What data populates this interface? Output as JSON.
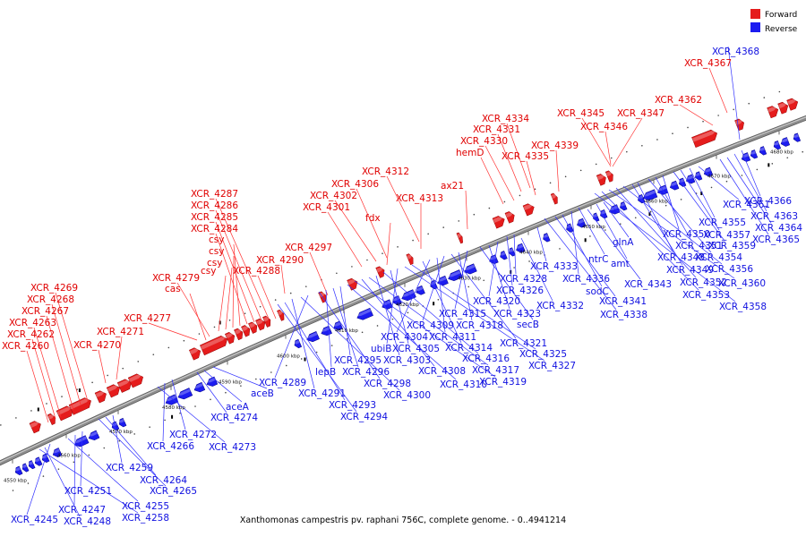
{
  "legend": {
    "forward": {
      "label": "Forward",
      "color": "#e51c1c"
    },
    "reverse": {
      "label": "Reverse",
      "color": "#1c1cf0"
    }
  },
  "caption": "Xanthomonas campestris pv. raphani 756C, complete genome. - 0..4941214",
  "colors": {
    "backbone": "#8c8c8c",
    "leader": "#ff3030",
    "leader_reverse": "#3030ff"
  },
  "scale": {
    "unit": "kbp",
    "ticks": [
      4550,
      4560,
      4570,
      4580,
      4590,
      4600,
      4610,
      4620,
      4630,
      4640,
      4650,
      4660,
      4670,
      4680
    ]
  },
  "forward_labels": [
    "XCR_4367",
    "XCR_4362",
    "XCR_4345",
    "XCR_4347",
    "XCR_4346",
    "XCR_4334",
    "XCR_4331",
    "XCR_4330",
    "hemD",
    "XCR_4339",
    "XCR_4335",
    "XCR_4312",
    "XCR_4306",
    "ax21",
    "XCR_4302",
    "XCR_4313",
    "XCR_4301",
    "fdx",
    "XCR_4287",
    "XCR_4286",
    "XCR_4285",
    "XCR_4284",
    "csy",
    "csy",
    "csy",
    "csy",
    "XCR_4288",
    "XCR_4297",
    "XCR_4290",
    "XCR_4279",
    "cas",
    "XCR_4269",
    "XCR_4268",
    "XCR_4267",
    "XCR_4263",
    "XCR_4262",
    "XCR_4260",
    "XCR_4277",
    "XCR_4271",
    "XCR_4270"
  ],
  "reverse_labels": [
    "XCR_4368",
    "XCR_4366",
    "XCR_4363",
    "XCR_4364",
    "XCR_4365",
    "XCR_4361",
    "XCR_4355",
    "XCR_4357",
    "XCR_4359",
    "XCR_4350",
    "XCR_4351",
    "XCR_4354",
    "XCR_4348",
    "XCR_4349",
    "XCR_4356",
    "XCR_4352",
    "XCR_4360",
    "XCR_4353",
    "XCR_4358",
    "glnA",
    "amt",
    "XCR_4343",
    "ntrC",
    "XCR_4336",
    "sodC",
    "XCR_4341",
    "XCR_4338",
    "XCR_4333",
    "XCR_4328",
    "XCR_4326",
    "XCR_4332",
    "XCR_4320",
    "XCR_4323",
    "secB",
    "XCR_4315",
    "XCR_4318",
    "XCR_4321",
    "XCR_4309",
    "XCR_4311",
    "XCR_4304",
    "XCR_4314",
    "XCR_4325",
    "XCR_4327",
    "ubiB",
    "XCR_4305",
    "XCR_4316",
    "XCR_4303",
    "XCR_4317",
    "XCR_4308",
    "XCR_4319",
    "XCR_4310",
    "XCR_4295",
    "XCR_4296",
    "lepB",
    "XCR_4298",
    "XCR_4289",
    "XCR_4300",
    "XCR_4291",
    "XCR_4293",
    "XCR_4294",
    "aceB",
    "aceA",
    "XCR_4274",
    "XCR_4272",
    "XCR_4266",
    "XCR_4273",
    "XCR_4259",
    "XCR_4264",
    "XCR_4265",
    "XCR_4251",
    "XCR_4247",
    "XCR_4255",
    "XCR_4245",
    "XCR_4248",
    "XCR_4258"
  ]
}
